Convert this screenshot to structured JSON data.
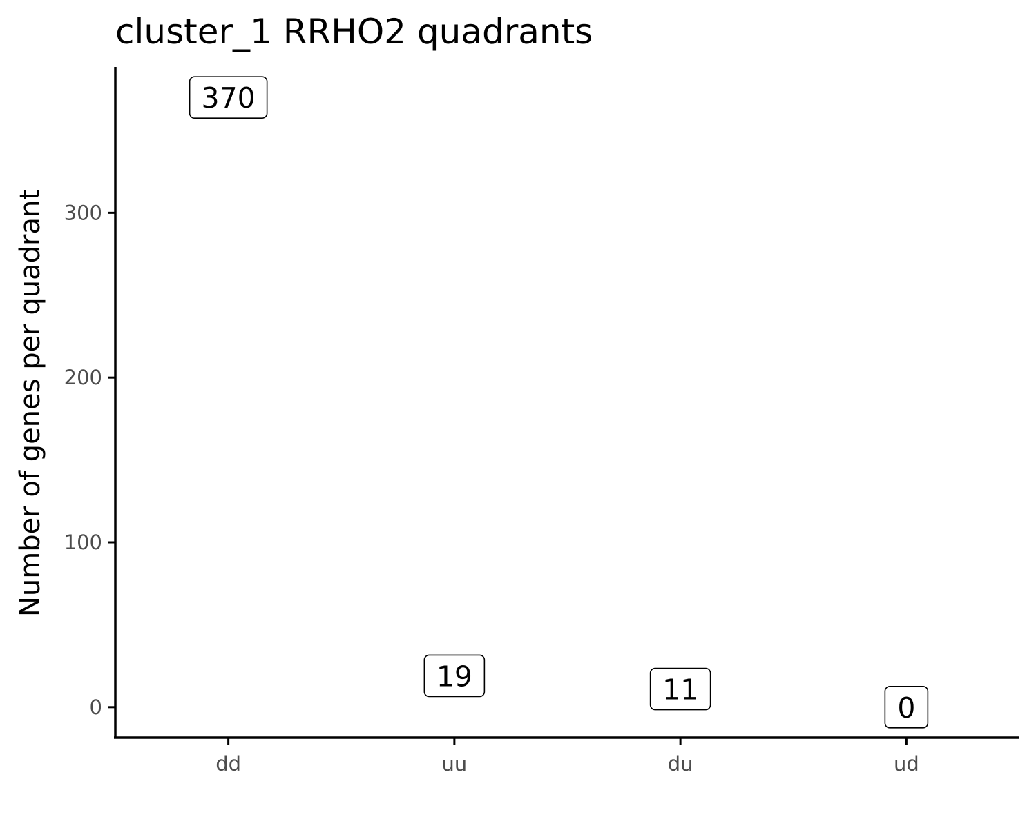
{
  "chart_data": {
    "type": "bar",
    "title": "cluster_1 RRHO2 quadrants",
    "xlabel": "",
    "ylabel": "Number of genes per quadrant",
    "categories": [
      "dd",
      "uu",
      "du",
      "ud"
    ],
    "values": [
      370,
      19,
      11,
      0
    ],
    "data_labels": [
      "370",
      "19",
      "11",
      "0"
    ],
    "yticks": [
      0,
      100,
      200,
      300
    ],
    "ytick_labels": [
      "0",
      "100",
      "200",
      "300"
    ],
    "ylim": [
      -18.5,
      388.5
    ],
    "grid": false,
    "legend": "none",
    "colors": {
      "axis": "#000000",
      "tick_label": "#4d4d4d",
      "text": "#000000",
      "label_fill": "#ffffff"
    }
  }
}
